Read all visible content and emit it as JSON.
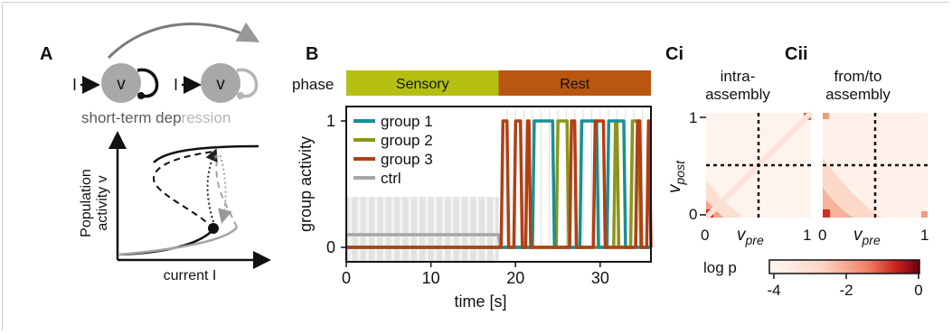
{
  "panel_a": {
    "label": "A",
    "node_glyph": "v",
    "input_glyph": "I",
    "caption_dark": "short-term dep",
    "caption_light": "ression",
    "ylabel_1": "Population",
    "ylabel_2": "activity v",
    "xlabel": "current I"
  },
  "panel_b": {
    "label": "B",
    "phase_label": "phase",
    "phases": [
      {
        "label": "Sensory",
        "start": 0,
        "end": 18,
        "color": "#b5bf12"
      },
      {
        "label": "Rest",
        "start": 18,
        "end": 36,
        "color": "#b9560f"
      }
    ]
  },
  "panel_c": {
    "label_i": "Ci",
    "label_ii": "Cii",
    "title_i_1": "intra-",
    "title_i_2": "assembly",
    "title_ii_1": "from/to",
    "title_ii_2": "assembly",
    "ylabel": "v",
    "ylabel_sub": "post",
    "xlabel": "v",
    "xlabel_sub": "pre",
    "ticks_y": [
      "1",
      "0"
    ],
    "ticks_x": [
      "0",
      "1"
    ],
    "colorbar_label": "log p",
    "colorbar_ticks": [
      "-4",
      "-2",
      "0"
    ]
  },
  "chart_data": {
    "type": "line",
    "xlabel": "time [s]",
    "ylabel": "group activity",
    "xlim": [
      0,
      36
    ],
    "ylim": [
      0,
      1
    ],
    "xticks": [
      "0",
      "10",
      "20",
      "30"
    ],
    "yticks": [
      "0",
      "1"
    ],
    "legend_position": "top-left",
    "series": [
      {
        "name": "group 1",
        "color": "#1a8f96",
        "on_intervals": [
          [
            22.0,
            24.6
          ],
          [
            27.6,
            29.8
          ],
          [
            30.8,
            33.0
          ]
        ]
      },
      {
        "name": "group 2",
        "color": "#8b9518",
        "on_intervals": [
          [
            24.8,
            26.3
          ],
          [
            31.6,
            32.2
          ],
          [
            33.6,
            34.8
          ]
        ]
      },
      {
        "name": "group 3",
        "color": "#b04014",
        "on_intervals": [
          [
            18.3,
            19.2
          ],
          [
            19.8,
            20.8
          ],
          [
            21.2,
            21.8
          ],
          [
            26.4,
            27.2
          ],
          [
            29.2,
            30.6
          ],
          [
            34.2,
            34.9
          ],
          [
            35.5,
            36.0
          ]
        ]
      },
      {
        "name": "ctrl",
        "color": "#a6a6a6",
        "sensory_level": 0.1,
        "rest_level": 0
      }
    ]
  }
}
